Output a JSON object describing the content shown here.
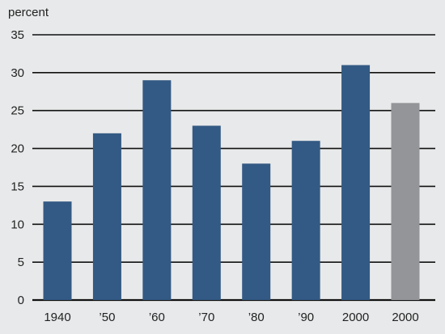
{
  "chart_data": {
    "type": "bar",
    "ylabel": "percent",
    "ylim": [
      0,
      35
    ],
    "yticks": [
      0,
      5,
      10,
      15,
      20,
      25,
      30,
      35
    ],
    "grid": true,
    "categories": [
      "1940",
      "’50",
      "’60",
      "’70",
      "’80",
      "’90",
      "2000",
      "2000"
    ],
    "values": [
      13,
      22,
      29,
      23,
      18,
      21,
      31,
      26
    ],
    "bar_colors": [
      "#335a84",
      "#335a84",
      "#335a84",
      "#335a84",
      "#335a84",
      "#335a84",
      "#335a84",
      "#939598"
    ]
  }
}
